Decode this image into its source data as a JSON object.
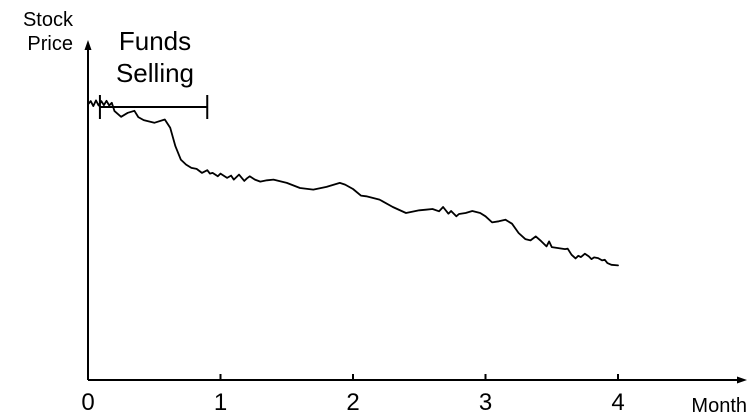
{
  "chart_data": {
    "type": "line",
    "ylabel_lines": [
      "Stock",
      "Price"
    ],
    "xlabel": "Month",
    "x_ticks": [
      0,
      1,
      2,
      3,
      4
    ],
    "x_tick_labels": [
      "0",
      "1",
      "2",
      "3",
      "4"
    ],
    "xlim": [
      0,
      4.9
    ],
    "ylim": [
      0,
      1
    ],
    "grid": false,
    "annotation": {
      "text_lines": [
        "Funds",
        "Selling"
      ],
      "x_start": 0.09,
      "x_end": 0.9
    },
    "series": [
      {
        "color": "#000000",
        "x": [
          0.0,
          0.02,
          0.04,
          0.06,
          0.08,
          0.1,
          0.12,
          0.14,
          0.16,
          0.18,
          0.2,
          0.25,
          0.3,
          0.35,
          0.38,
          0.42,
          0.5,
          0.58,
          0.62,
          0.66,
          0.7,
          0.74,
          0.78,
          0.82,
          0.86,
          0.9,
          0.92,
          0.94,
          0.98,
          1.0,
          1.05,
          1.08,
          1.1,
          1.14,
          1.18,
          1.2,
          1.22,
          1.26,
          1.3,
          1.35,
          1.4,
          1.5,
          1.6,
          1.7,
          1.8,
          1.9,
          1.94,
          2.0,
          2.06,
          2.1,
          2.2,
          2.3,
          2.4,
          2.5,
          2.55,
          2.6,
          2.65,
          2.68,
          2.72,
          2.74,
          2.78,
          2.8,
          2.85,
          2.9,
          2.96,
          3.0,
          3.05,
          3.1,
          3.15,
          3.2,
          3.25,
          3.3,
          3.34,
          3.38,
          3.42,
          3.46,
          3.48,
          3.5,
          3.55,
          3.6,
          3.62,
          3.65,
          3.68,
          3.7,
          3.72,
          3.75,
          3.78,
          3.8,
          3.82,
          3.85,
          3.88,
          3.9,
          3.92,
          3.95,
          4.0
        ],
        "y": [
          0.825,
          0.835,
          0.82,
          0.837,
          0.822,
          0.835,
          0.823,
          0.836,
          0.822,
          0.83,
          0.805,
          0.788,
          0.8,
          0.806,
          0.787,
          0.778,
          0.77,
          0.78,
          0.755,
          0.7,
          0.66,
          0.645,
          0.635,
          0.632,
          0.62,
          0.628,
          0.618,
          0.62,
          0.61,
          0.618,
          0.605,
          0.612,
          0.6,
          0.615,
          0.596,
          0.604,
          0.61,
          0.6,
          0.594,
          0.598,
          0.6,
          0.59,
          0.575,
          0.57,
          0.578,
          0.59,
          0.585,
          0.572,
          0.552,
          0.55,
          0.54,
          0.518,
          0.5,
          0.508,
          0.51,
          0.512,
          0.505,
          0.518,
          0.498,
          0.506,
          0.49,
          0.497,
          0.5,
          0.506,
          0.5,
          0.49,
          0.472,
          0.475,
          0.48,
          0.468,
          0.44,
          0.422,
          0.418,
          0.43,
          0.416,
          0.4,
          0.415,
          0.398,
          0.395,
          0.392,
          0.393,
          0.375,
          0.364,
          0.372,
          0.368,
          0.378,
          0.37,
          0.362,
          0.367,
          0.365,
          0.358,
          0.36,
          0.35,
          0.345,
          0.343
        ]
      }
    ]
  }
}
